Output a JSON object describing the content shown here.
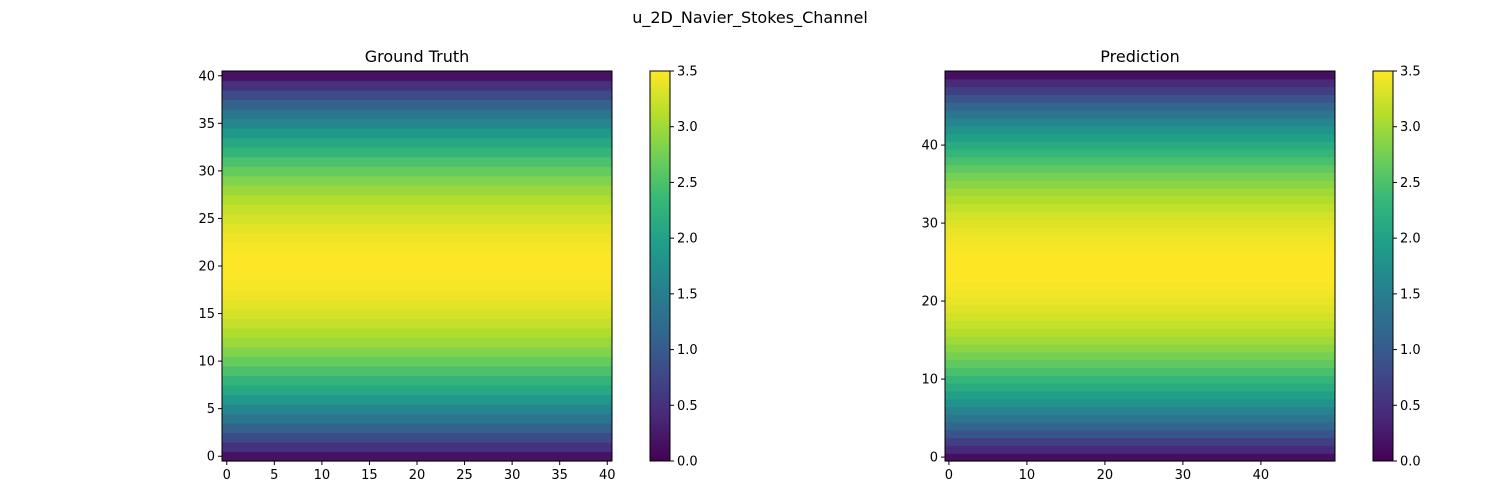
{
  "figure": {
    "suptitle": "u_2D_Navier_Stokes_Channel"
  },
  "colormap": {
    "name": "viridis",
    "stops": [
      "#440154",
      "#482878",
      "#3e4989",
      "#31688e",
      "#26828e",
      "#1f9e89",
      "#35b779",
      "#6ece58",
      "#b5de2b",
      "#fde725"
    ]
  },
  "chart_data": [
    {
      "type": "heatmap",
      "title": "Ground Truth",
      "nx": 41,
      "ny": 41,
      "xlim": [
        -0.5,
        40.5
      ],
      "ylim": [
        -0.5,
        40.5
      ],
      "xticks": [
        0,
        5,
        10,
        15,
        20,
        25,
        30,
        35,
        40
      ],
      "yticks": [
        0,
        5,
        10,
        15,
        20,
        25,
        30,
        35,
        40
      ],
      "profile": "parabolic_in_y",
      "value_range": [
        0,
        3.5
      ],
      "peak_value": 3.5,
      "colorbar": {
        "min": 0.0,
        "max": 3.5,
        "ticks": [
          "0.0",
          "0.5",
          "1.0",
          "1.5",
          "2.0",
          "2.5",
          "3.0",
          "3.5"
        ]
      }
    },
    {
      "type": "heatmap",
      "title": "Prediction",
      "nx": 50,
      "ny": 50,
      "xlim": [
        -0.5,
        49.5
      ],
      "ylim": [
        -0.5,
        49.5
      ],
      "xticks": [
        0,
        10,
        20,
        30,
        40
      ],
      "yticks": [
        0,
        10,
        20,
        30,
        40
      ],
      "profile": "parabolic_in_y",
      "value_range": [
        0,
        3.5
      ],
      "peak_value": 3.5,
      "colorbar": {
        "min": 0.0,
        "max": 3.5,
        "ticks": [
          "0.0",
          "0.5",
          "1.0",
          "1.5",
          "2.0",
          "2.5",
          "3.0",
          "3.5"
        ]
      }
    }
  ]
}
